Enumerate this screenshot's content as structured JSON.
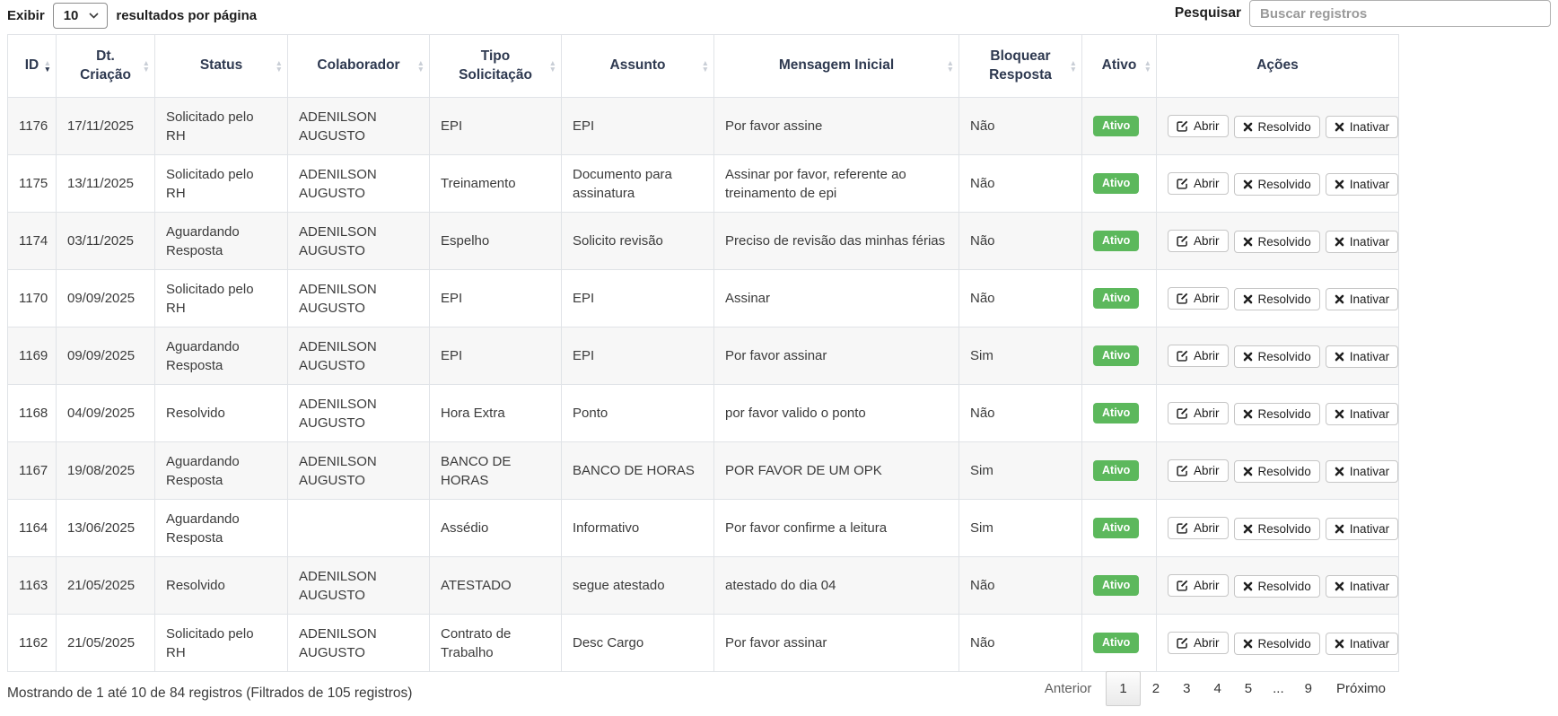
{
  "controls": {
    "length_prefix": "Exibir",
    "length_value": "10",
    "length_suffix": "resultados por página",
    "search_label": "Pesquisar",
    "search_placeholder": "Buscar registros"
  },
  "table": {
    "columns": [
      {
        "label": "ID",
        "sortable": true,
        "sorted": "desc"
      },
      {
        "label": "Dt. Criação",
        "sortable": true,
        "sorted": null
      },
      {
        "label": "Status",
        "sortable": true,
        "sorted": null
      },
      {
        "label": "Colaborador",
        "sortable": true,
        "sorted": null
      },
      {
        "label": "Tipo Solicitação",
        "sortable": true,
        "sorted": null
      },
      {
        "label": "Assunto",
        "sortable": true,
        "sorted": null
      },
      {
        "label": "Mensagem Inicial",
        "sortable": true,
        "sorted": null
      },
      {
        "label": "Bloquear Resposta",
        "sortable": true,
        "sorted": null
      },
      {
        "label": "Ativo",
        "sortable": true,
        "sorted": null
      },
      {
        "label": "Ações",
        "sortable": false,
        "sorted": null
      }
    ],
    "rows": [
      {
        "id": "1176",
        "dt_criacao": "17/11/2025",
        "status": "Solicitado pelo RH",
        "colaborador": "ADENILSON AUGUSTO",
        "tipo_solicitacao": "EPI",
        "assunto": "EPI",
        "mensagem_inicial": "Por favor assine",
        "bloquear_resposta": "Não",
        "ativo": "Ativo"
      },
      {
        "id": "1175",
        "dt_criacao": "13/11/2025",
        "status": "Solicitado pelo RH",
        "colaborador": "ADENILSON AUGUSTO",
        "tipo_solicitacao": "Treinamento",
        "assunto": "Documento para assinatura",
        "mensagem_inicial": "Assinar por favor, referente ao treinamento de epi",
        "bloquear_resposta": "Não",
        "ativo": "Ativo"
      },
      {
        "id": "1174",
        "dt_criacao": "03/11/2025",
        "status": "Aguardando Resposta",
        "colaborador": "ADENILSON AUGUSTO",
        "tipo_solicitacao": "Espelho",
        "assunto": "Solicito revisão",
        "mensagem_inicial": "Preciso de revisão das minhas férias",
        "bloquear_resposta": "Não",
        "ativo": "Ativo"
      },
      {
        "id": "1170",
        "dt_criacao": "09/09/2025",
        "status": "Solicitado pelo RH",
        "colaborador": "ADENILSON AUGUSTO",
        "tipo_solicitacao": "EPI",
        "assunto": "EPI",
        "mensagem_inicial": "Assinar",
        "bloquear_resposta": "Não",
        "ativo": "Ativo"
      },
      {
        "id": "1169",
        "dt_criacao": "09/09/2025",
        "status": "Aguardando Resposta",
        "colaborador": "ADENILSON AUGUSTO",
        "tipo_solicitacao": "EPI",
        "assunto": "EPI",
        "mensagem_inicial": "Por favor assinar",
        "bloquear_resposta": "Sim",
        "ativo": "Ativo"
      },
      {
        "id": "1168",
        "dt_criacao": "04/09/2025",
        "status": "Resolvido",
        "colaborador": "ADENILSON AUGUSTO",
        "tipo_solicitacao": "Hora Extra",
        "assunto": "Ponto",
        "mensagem_inicial": "por favor valido o ponto",
        "bloquear_resposta": "Não",
        "ativo": "Ativo"
      },
      {
        "id": "1167",
        "dt_criacao": "19/08/2025",
        "status": "Aguardando Resposta",
        "colaborador": "ADENILSON AUGUSTO",
        "tipo_solicitacao": "BANCO DE HORAS",
        "assunto": "BANCO DE HORAS",
        "mensagem_inicial": "POR FAVOR DE UM OPK",
        "bloquear_resposta": "Sim",
        "ativo": "Ativo"
      },
      {
        "id": "1164",
        "dt_criacao": "13/06/2025",
        "status": "Aguardando Resposta",
        "colaborador": "",
        "tipo_solicitacao": "Assédio",
        "assunto": "Informativo",
        "mensagem_inicial": "Por favor confirme a leitura",
        "bloquear_resposta": "Sim",
        "ativo": "Ativo"
      },
      {
        "id": "1163",
        "dt_criacao": "21/05/2025",
        "status": "Resolvido",
        "colaborador": "ADENILSON AUGUSTO",
        "tipo_solicitacao": "ATESTADO",
        "assunto": "segue atestado",
        "mensagem_inicial": "atestado do dia 04",
        "bloquear_resposta": "Não",
        "ativo": "Ativo"
      },
      {
        "id": "1162",
        "dt_criacao": "21/05/2025",
        "status": "Solicitado pelo RH",
        "colaborador": "ADENILSON AUGUSTO",
        "tipo_solicitacao": "Contrato de Trabalho",
        "assunto": "Desc Cargo",
        "mensagem_inicial": "Por favor assinar",
        "bloquear_resposta": "Não",
        "ativo": "Ativo"
      }
    ]
  },
  "actions": {
    "abrir": "Abrir",
    "resolvido": "Resolvido",
    "inativar": "Inativar"
  },
  "footer": {
    "info": "Mostrando de 1 até 10 de 84 registros (Filtrados de 105 registros)",
    "pagination": {
      "previous": "Anterior",
      "pages": [
        "1",
        "2",
        "3",
        "4",
        "5",
        "...",
        "9"
      ],
      "active_page": "1",
      "next": "Próximo"
    }
  },
  "colors": {
    "active_badge": "#5cb85c",
    "header_text": "#2e3950",
    "grid_border": "#e0e3e7"
  }
}
